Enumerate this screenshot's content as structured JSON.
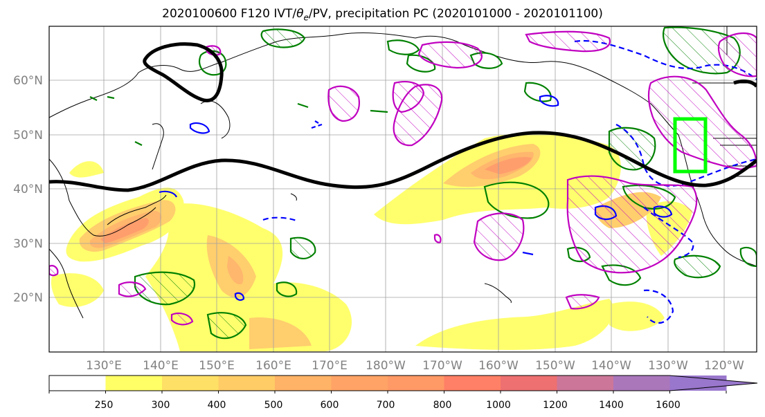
{
  "title": "2020100600 F120 IVT/θe/PV, precipitation PC (2020101000 - 2020101100)",
  "title_parts": {
    "pre": "2020100600 F120 IVT/",
    "theta": "θ",
    "sub": "e",
    "post": "/PV, precipitation PC (2020101000 - 2020101100)"
  },
  "map": {
    "lon_labels": [
      "130°E",
      "140°E",
      "150°E",
      "160°E",
      "170°E",
      "180°W",
      "170°W",
      "160°W",
      "150°W",
      "140°W",
      "130°W",
      "120°W"
    ],
    "lat_labels": [
      "60°N",
      "50°N",
      "40°N",
      "30°N",
      "20°N"
    ],
    "label_color": "#808080",
    "gridline_color": "#a0a0a0",
    "ivt_colors": [
      "#ffff66",
      "#ffe066",
      "#ffcc66",
      "#ffb366",
      "#ff9966",
      "#ff8066",
      "#ee7070"
    ],
    "jet_color": "#000000",
    "theta_e_color": "#008000",
    "pv_color": "#0000ff",
    "precip_pc_color": "#c000c0",
    "box_color": "#00ff00"
  },
  "colorbar": {
    "labels": [
      "250",
      "300",
      "400",
      "500",
      "600",
      "700",
      "800",
      "1000",
      "1200",
      "1400",
      "1600"
    ],
    "colors": [
      "#ffffff",
      "#ffff66",
      "#ffe066",
      "#ffcc66",
      "#ffb366",
      "#ffa366",
      "#ff9966",
      "#ff8066",
      "#ee7070",
      "#cc7799",
      "#aa77bb",
      "#9977cc"
    ]
  }
}
